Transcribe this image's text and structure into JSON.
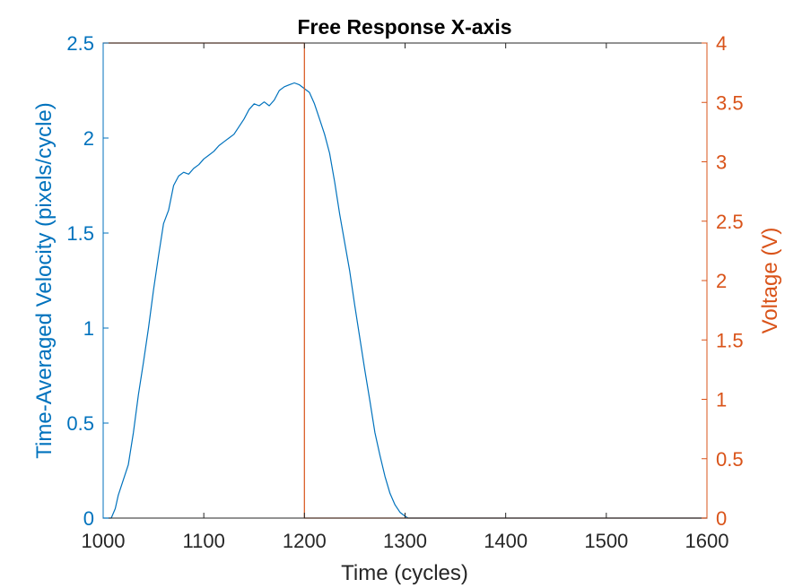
{
  "chart_data": {
    "type": "line",
    "title": "Free Response X-axis",
    "xlabel": "Time (cycles)",
    "ylabel_left": "Time-Averaged Velocity (pixels/cycle)",
    "ylabel_right": "Voltage (V)",
    "xlim": [
      1000,
      1600
    ],
    "ylim_left": [
      0,
      2.5
    ],
    "ylim_right": [
      0,
      4
    ],
    "x_ticks": [
      "1000",
      "1100",
      "1200",
      "1300",
      "1400",
      "1500",
      "1600"
    ],
    "y_ticks_left": [
      "0",
      "0.5",
      "1",
      "1.5",
      "2",
      "2.5"
    ],
    "y_ticks_right": [
      "0",
      "0.5",
      "1",
      "1.5",
      "2",
      "2.5",
      "3",
      "3.5",
      "4"
    ],
    "grid": false,
    "colors": {
      "velocity": "#0072BD",
      "voltage": "#D95319",
      "axes": "#262626"
    },
    "series": [
      {
        "axis": "left",
        "x": [
          1000,
          1008,
          1012,
          1015,
          1020,
          1025,
          1030,
          1035,
          1040,
          1045,
          1050,
          1055,
          1060,
          1065,
          1070,
          1075,
          1080,
          1085,
          1090,
          1095,
          1100,
          1105,
          1110,
          1115,
          1120,
          1125,
          1130,
          1135,
          1140,
          1145,
          1150,
          1155,
          1160,
          1165,
          1170,
          1175,
          1180,
          1185,
          1190,
          1195,
          1200,
          1205,
          1210,
          1215,
          1220,
          1225,
          1230,
          1235,
          1240,
          1245,
          1250,
          1255,
          1260,
          1265,
          1270,
          1275,
          1280,
          1285,
          1290,
          1295,
          1300,
          1303,
          1310,
          1400,
          1500,
          1600
        ],
        "values": [
          0,
          0,
          0.05,
          0.12,
          0.2,
          0.28,
          0.45,
          0.65,
          0.82,
          1.0,
          1.2,
          1.38,
          1.55,
          1.62,
          1.75,
          1.8,
          1.82,
          1.81,
          1.84,
          1.86,
          1.89,
          1.91,
          1.93,
          1.96,
          1.98,
          2.0,
          2.02,
          2.06,
          2.1,
          2.15,
          2.18,
          2.17,
          2.19,
          2.17,
          2.2,
          2.25,
          2.27,
          2.28,
          2.29,
          2.28,
          2.26,
          2.24,
          2.18,
          2.1,
          2.02,
          1.92,
          1.77,
          1.6,
          1.45,
          1.3,
          1.12,
          0.95,
          0.78,
          0.62,
          0.45,
          0.33,
          0.22,
          0.13,
          0.07,
          0.03,
          0.01,
          0,
          0,
          0,
          0,
          0
        ]
      },
      {
        "axis": "right",
        "x": [
          1000,
          1200,
          1200,
          1600
        ],
        "values": [
          4,
          4,
          0,
          0
        ]
      }
    ]
  }
}
